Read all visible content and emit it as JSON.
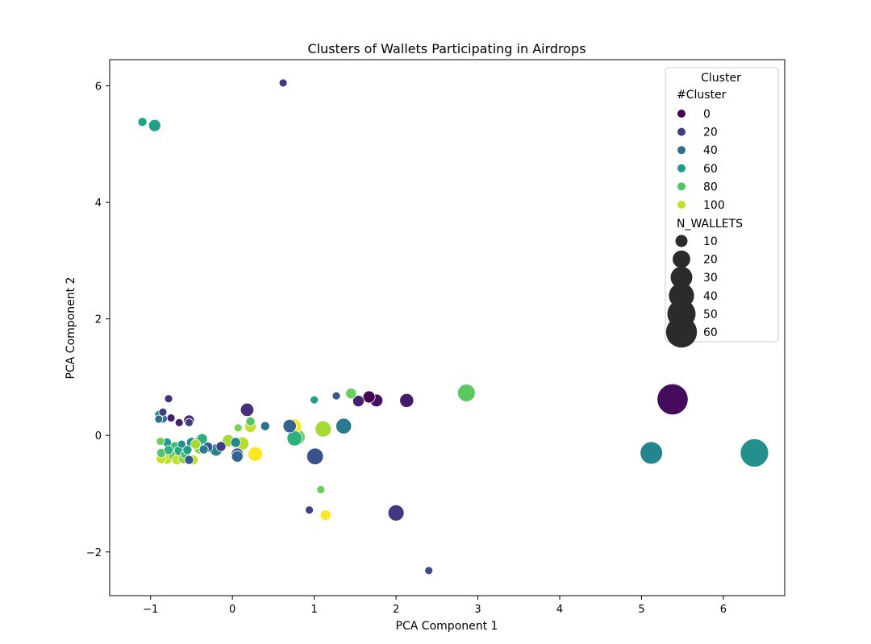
{
  "chart_data": {
    "type": "scatter",
    "title": "Clusters of Wallets Participating in Airdrops",
    "xlabel": "PCA Component 1",
    "ylabel": "PCA Component 2",
    "xlim": [
      -1.5,
      6.75
    ],
    "ylim": [
      -2.75,
      6.45
    ],
    "xticks": [
      -1,
      0,
      1,
      2,
      3,
      4,
      5,
      6
    ],
    "yticks": [
      -2,
      0,
      2,
      4,
      6
    ],
    "grid": false,
    "legend_position": "top-right",
    "legend": {
      "title": "Cluster",
      "hue_title": "#Cluster",
      "hue_entries": [
        0,
        20,
        40,
        60,
        80,
        100
      ],
      "size_title": "N_WALLETS",
      "size_entries": [
        10,
        20,
        30,
        40,
        50,
        60
      ]
    },
    "hue_range": [
      0,
      110
    ],
    "size_range": [
      5,
      65
    ],
    "points": [
      {
        "x": -1.1,
        "y": 5.38,
        "cluster": 62,
        "n": 6
      },
      {
        "x": -0.95,
        "y": 5.32,
        "cluster": 62,
        "n": 10
      },
      {
        "x": 0.62,
        "y": 6.05,
        "cluster": 18,
        "n": 5
      },
      {
        "x": -0.9,
        "y": 0.36,
        "cluster": 55,
        "n": 5
      },
      {
        "x": -0.9,
        "y": 0.28,
        "cluster": 40,
        "n": 5
      },
      {
        "x": -0.85,
        "y": 0.4,
        "cluster": 20,
        "n": 5
      },
      {
        "x": -0.85,
        "y": 0.29,
        "cluster": 40,
        "n": 6
      },
      {
        "x": -0.78,
        "y": 0.63,
        "cluster": 15,
        "n": 5
      },
      {
        "x": -0.75,
        "y": 0.3,
        "cluster": 10,
        "n": 5
      },
      {
        "x": -0.65,
        "y": 0.22,
        "cluster": 10,
        "n": 5
      },
      {
        "x": -0.53,
        "y": 0.26,
        "cluster": 15,
        "n": 8
      },
      {
        "x": -0.53,
        "y": 0.22,
        "cluster": 20,
        "n": 5
      },
      {
        "x": -0.88,
        "y": -0.1,
        "cluster": 85,
        "n": 5
      },
      {
        "x": -0.8,
        "y": -0.12,
        "cluster": 60,
        "n": 6
      },
      {
        "x": -0.87,
        "y": -0.3,
        "cluster": 80,
        "n": 6
      },
      {
        "x": -0.87,
        "y": -0.4,
        "cluster": 100,
        "n": 7
      },
      {
        "x": -0.8,
        "y": -0.4,
        "cluster": 100,
        "n": 8
      },
      {
        "x": -0.78,
        "y": -0.25,
        "cluster": 70,
        "n": 6
      },
      {
        "x": -0.72,
        "y": -0.34,
        "cluster": 85,
        "n": 7
      },
      {
        "x": -0.7,
        "y": -0.2,
        "cluster": 75,
        "n": 8
      },
      {
        "x": -0.68,
        "y": -0.42,
        "cluster": 100,
        "n": 7
      },
      {
        "x": -0.65,
        "y": -0.26,
        "cluster": 65,
        "n": 7
      },
      {
        "x": -0.62,
        "y": -0.15,
        "cluster": 55,
        "n": 5
      },
      {
        "x": -0.6,
        "y": -0.4,
        "cluster": 90,
        "n": 7
      },
      {
        "x": -0.58,
        "y": -0.32,
        "cluster": 78,
        "n": 6
      },
      {
        "x": -0.55,
        "y": -0.25,
        "cluster": 60,
        "n": 6
      },
      {
        "x": -0.53,
        "y": -0.42,
        "cluster": 30,
        "n": 6
      },
      {
        "x": -0.5,
        "y": -0.12,
        "cluster": 55,
        "n": 7
      },
      {
        "x": -0.48,
        "y": -0.42,
        "cluster": 100,
        "n": 7
      },
      {
        "x": -0.45,
        "y": -0.15,
        "cluster": 95,
        "n": 7
      },
      {
        "x": -0.42,
        "y": -0.12,
        "cluster": 65,
        "n": 8
      },
      {
        "x": -0.4,
        "y": -0.22,
        "cluster": 90,
        "n": 9
      },
      {
        "x": -0.37,
        "y": -0.06,
        "cluster": 70,
        "n": 8
      },
      {
        "x": -0.35,
        "y": -0.24,
        "cluster": 45,
        "n": 6
      },
      {
        "x": -0.3,
        "y": -0.2,
        "cluster": 30,
        "n": 7
      },
      {
        "x": -0.2,
        "y": -0.25,
        "cluster": 50,
        "n": 10
      },
      {
        "x": -0.14,
        "y": -0.19,
        "cluster": 20,
        "n": 7
      },
      {
        "x": -0.05,
        "y": -0.09,
        "cluster": 95,
        "n": 10
      },
      {
        "x": 0.04,
        "y": -0.12,
        "cluster": 50,
        "n": 7
      },
      {
        "x": 0.06,
        "y": -0.32,
        "cluster": 30,
        "n": 10
      },
      {
        "x": 0.06,
        "y": -0.36,
        "cluster": 35,
        "n": 9
      },
      {
        "x": 0.07,
        "y": 0.13,
        "cluster": 88,
        "n": 5
      },
      {
        "x": 0.12,
        "y": -0.14,
        "cluster": 98,
        "n": 12
      },
      {
        "x": 0.18,
        "y": 0.44,
        "cluster": 15,
        "n": 12
      },
      {
        "x": 0.22,
        "y": 0.24,
        "cluster": 80,
        "n": 6
      },
      {
        "x": 0.22,
        "y": 0.15,
        "cluster": 100,
        "n": 9
      },
      {
        "x": 0.28,
        "y": -0.32,
        "cluster": 110,
        "n": 14
      },
      {
        "x": 0.4,
        "y": 0.16,
        "cluster": 40,
        "n": 6
      },
      {
        "x": 0.7,
        "y": 0.16,
        "cluster": 35,
        "n": 12
      },
      {
        "x": 0.75,
        "y": 0.15,
        "cluster": 110,
        "n": 16
      },
      {
        "x": 0.76,
        "y": -0.05,
        "cluster": 70,
        "n": 15
      },
      {
        "x": 0.79,
        "y": -0.03,
        "cluster": 85,
        "n": 17
      },
      {
        "x": 1.0,
        "y": 0.61,
        "cluster": 62,
        "n": 5
      },
      {
        "x": 1.01,
        "y": -0.36,
        "cluster": 28,
        "n": 18
      },
      {
        "x": 1.08,
        "y": -0.93,
        "cluster": 85,
        "n": 5
      },
      {
        "x": 1.11,
        "y": 0.11,
        "cluster": 95,
        "n": 17
      },
      {
        "x": 0.94,
        "y": -1.28,
        "cluster": 20,
        "n": 5
      },
      {
        "x": 1.14,
        "y": -1.37,
        "cluster": 110,
        "n": 8
      },
      {
        "x": 1.27,
        "y": 0.68,
        "cluster": 30,
        "n": 4
      },
      {
        "x": 1.36,
        "y": 0.16,
        "cluster": 45,
        "n": 16
      },
      {
        "x": 1.45,
        "y": 0.72,
        "cluster": 85,
        "n": 8
      },
      {
        "x": 1.54,
        "y": 0.59,
        "cluster": 10,
        "n": 9
      },
      {
        "x": 1.67,
        "y": 0.66,
        "cluster": 0,
        "n": 10
      },
      {
        "x": 1.76,
        "y": 0.6,
        "cluster": 5,
        "n": 11
      },
      {
        "x": 2.0,
        "y": -1.33,
        "cluster": 18,
        "n": 17
      },
      {
        "x": 2.13,
        "y": 0.6,
        "cluster": 8,
        "n": 13
      },
      {
        "x": 2.4,
        "y": -2.32,
        "cluster": 25,
        "n": 4
      },
      {
        "x": 2.86,
        "y": 0.73,
        "cluster": 82,
        "n": 20
      },
      {
        "x": 5.12,
        "y": -0.3,
        "cluster": 50,
        "n": 32
      },
      {
        "x": 5.38,
        "y": 0.62,
        "cluster": 3,
        "n": 60
      },
      {
        "x": 6.38,
        "y": -0.3,
        "cluster": 55,
        "n": 50
      }
    ]
  }
}
